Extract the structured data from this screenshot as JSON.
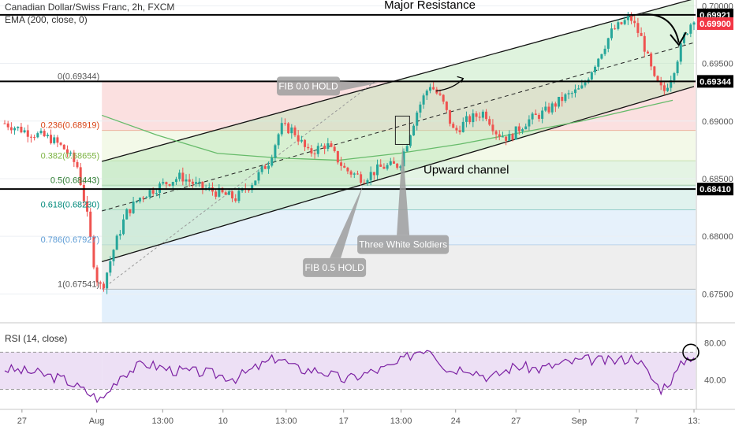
{
  "header": {
    "title": "Canadian Dollar/Swiss Franc, 2h, FXCM",
    "indicator": "EMA (200, close, 0)"
  },
  "rsi_panel": {
    "label": "RSI (14, close)",
    "ticks": [
      "80.00",
      "40.00"
    ],
    "tick_values": [
      80,
      40
    ],
    "upper_band": 70,
    "lower_band": 30,
    "range": [
      10,
      100
    ]
  },
  "chart_data": {
    "type": "candlestick",
    "symbol": "CADCHF",
    "timeframe": "2h",
    "ylim": [
      0.6725,
      0.7005
    ],
    "price_ticks": [
      0.675,
      0.68,
      0.685,
      0.69,
      0.695,
      0.7
    ],
    "price_tick_labels": [
      "0.67500",
      "0.68000",
      "0.68500",
      "0.69000",
      "0.69500",
      "0.70000"
    ],
    "x_labels": [
      "27",
      "Aug",
      "13:00",
      "10",
      "13:00",
      "17",
      "13:00",
      "24",
      "27",
      "Sep",
      "7",
      "13:"
    ],
    "bar_count": 210,
    "close_path": [
      [
        0,
        0.6898
      ],
      [
        8,
        0.689
      ],
      [
        15,
        0.6885
      ],
      [
        20,
        0.6875
      ],
      [
        24,
        0.686
      ],
      [
        27,
        0.682
      ],
      [
        30,
        0.6765
      ],
      [
        32,
        0.6754
      ],
      [
        36,
        0.679
      ],
      [
        40,
        0.682
      ],
      [
        45,
        0.6835
      ],
      [
        52,
        0.6845
      ],
      [
        58,
        0.6852
      ],
      [
        64,
        0.6843
      ],
      [
        70,
        0.6838
      ],
      [
        76,
        0.6833
      ],
      [
        82,
        0.6848
      ],
      [
        87,
        0.6865
      ],
      [
        91,
        0.6895
      ],
      [
        95,
        0.6892
      ],
      [
        100,
        0.6872
      ],
      [
        106,
        0.688
      ],
      [
        112,
        0.6858
      ],
      [
        118,
        0.685
      ],
      [
        124,
        0.686
      ],
      [
        130,
        0.6862
      ],
      [
        136,
        0.691
      ],
      [
        140,
        0.6932
      ],
      [
        144,
        0.6918
      ],
      [
        148,
        0.689
      ],
      [
        152,
        0.69
      ],
      [
        158,
        0.6908
      ],
      [
        162,
        0.689
      ],
      [
        166,
        0.6885
      ],
      [
        172,
        0.69
      ],
      [
        178,
        0.6908
      ],
      [
        184,
        0.692
      ],
      [
        190,
        0.6928
      ],
      [
        194,
        0.6948
      ],
      [
        200,
        0.6978
      ],
      [
        206,
        0.699
      ],
      [
        210,
        0.697
      ],
      [
        214,
        0.6935
      ],
      [
        217,
        0.6925
      ],
      [
        220,
        0.6942
      ],
      [
        224,
        0.6975
      ],
      [
        227,
        0.699
      ]
    ],
    "rsi_path": [
      [
        0,
        52
      ],
      [
        10,
        48
      ],
      [
        20,
        40
      ],
      [
        28,
        25
      ],
      [
        32,
        18
      ],
      [
        38,
        45
      ],
      [
        46,
        58
      ],
      [
        56,
        50
      ],
      [
        66,
        48
      ],
      [
        76,
        42
      ],
      [
        84,
        55
      ],
      [
        90,
        65
      ],
      [
        96,
        52
      ],
      [
        104,
        50
      ],
      [
        112,
        40
      ],
      [
        120,
        48
      ],
      [
        128,
        55
      ],
      [
        136,
        72
      ],
      [
        140,
        75
      ],
      [
        146,
        50
      ],
      [
        152,
        54
      ],
      [
        160,
        42
      ],
      [
        168,
        55
      ],
      [
        176,
        52
      ],
      [
        184,
        58
      ],
      [
        192,
        62
      ],
      [
        200,
        60
      ],
      [
        208,
        65
      ],
      [
        213,
        42
      ],
      [
        216,
        30
      ],
      [
        220,
        42
      ],
      [
        224,
        62
      ],
      [
        227,
        67
      ]
    ],
    "ema200_path": [
      [
        32,
        0.6905
      ],
      [
        50,
        0.6888
      ],
      [
        70,
        0.6872
      ],
      [
        90,
        0.6868
      ],
      [
        110,
        0.6866
      ],
      [
        130,
        0.6872
      ],
      [
        150,
        0.688
      ],
      [
        170,
        0.689
      ],
      [
        190,
        0.69
      ],
      [
        210,
        0.6912
      ],
      [
        220,
        0.6918
      ]
    ],
    "levels": [
      {
        "label": "0.69921",
        "value": 0.69921,
        "style": "black"
      },
      {
        "label": "0.69900",
        "value": 0.699,
        "style": "red"
      },
      {
        "label": "0.69344",
        "value": 0.69344,
        "style": "black"
      },
      {
        "label": "0.68410",
        "value": 0.6841,
        "style": "black"
      }
    ],
    "fibonacci": [
      {
        "label": "0(0.69344)",
        "value": 0.69344,
        "color": "#555555"
      },
      {
        "label": "0.236(0.68919)",
        "value": 0.68919,
        "color": "#d84315"
      },
      {
        "label": "0.382(0.68655)",
        "value": 0.68655,
        "color": "#7cb342"
      },
      {
        "label": "0.5(0.68443)",
        "value": 0.68443,
        "color": "#2e7d32"
      },
      {
        "label": "0.618(0.68230)",
        "value": 0.6823,
        "color": "#00897b"
      },
      {
        "label": "0.786(0.67927)",
        "value": 0.67927,
        "color": "#5b9bd5"
      },
      {
        "label": "1(0.67541)",
        "value": 0.67541,
        "color": "#555555"
      }
    ],
    "channel": {
      "upper": [
        [
          32,
          0.6865
        ],
        [
          227,
          0.7006
        ]
      ],
      "lower": [
        [
          32,
          0.6778
        ],
        [
          227,
          0.693
        ]
      ],
      "middle": [
        [
          32,
          0.6822
        ],
        [
          227,
          0.6968
        ]
      ]
    },
    "annotations": [
      {
        "text": "Major Resistance",
        "x": 140,
        "value": 0.69975
      },
      {
        "text": "Upward channel",
        "x": 152,
        "value": 0.68545
      },
      {
        "text": "FIB 0.0 HOLD",
        "x": 100,
        "value": 0.69344
      },
      {
        "text": "Three White Soldiers",
        "x": 126,
        "value": 0.6797
      },
      {
        "text": "FIB 0.5 HOLD",
        "x": 106,
        "value": 0.6777
      }
    ]
  }
}
